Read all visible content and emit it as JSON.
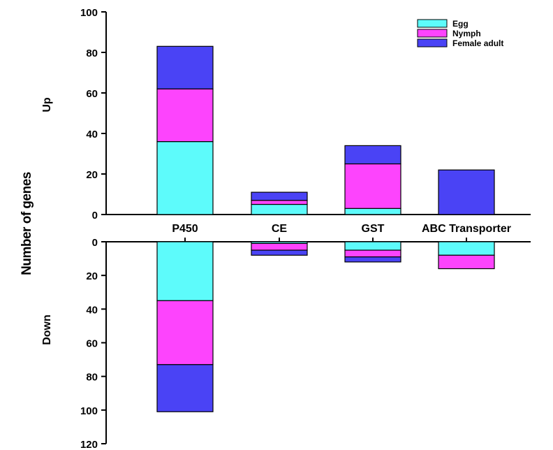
{
  "chart_data": {
    "type": "bar",
    "stacked": true,
    "diverging": true,
    "ylabel": "Number of genes",
    "up_label": "Up",
    "down_label": "Down",
    "categories": [
      "P450",
      "CE",
      "GST",
      "ABC Transporter"
    ],
    "up": {
      "ylim": [
        0,
        100
      ],
      "ticks": [
        0,
        20,
        40,
        60,
        80,
        100
      ],
      "series": [
        {
          "name": "Egg",
          "color": "#5dfbfb",
          "values": [
            36,
            5,
            3,
            0
          ]
        },
        {
          "name": "Nymph",
          "color": "#fd44fd",
          "values": [
            26,
            2,
            22,
            0
          ]
        },
        {
          "name": "Female adult",
          "color": "#4a43f5",
          "values": [
            21,
            4,
            9,
            22
          ]
        }
      ]
    },
    "down": {
      "ylim": [
        0,
        120
      ],
      "ticks": [
        0,
        20,
        40,
        60,
        80,
        100,
        120
      ],
      "series": [
        {
          "name": "Egg",
          "color": "#5dfbfb",
          "values": [
            35,
            1,
            5,
            8
          ]
        },
        {
          "name": "Nymph",
          "color": "#fd44fd",
          "values": [
            38,
            4,
            4,
            8
          ]
        },
        {
          "name": "Female adult",
          "color": "#4a43f5",
          "values": [
            28,
            3,
            3,
            0
          ]
        }
      ]
    },
    "legend": {
      "position": "top-right",
      "entries": [
        "Egg",
        "Nymph",
        "Female adult"
      ]
    }
  }
}
